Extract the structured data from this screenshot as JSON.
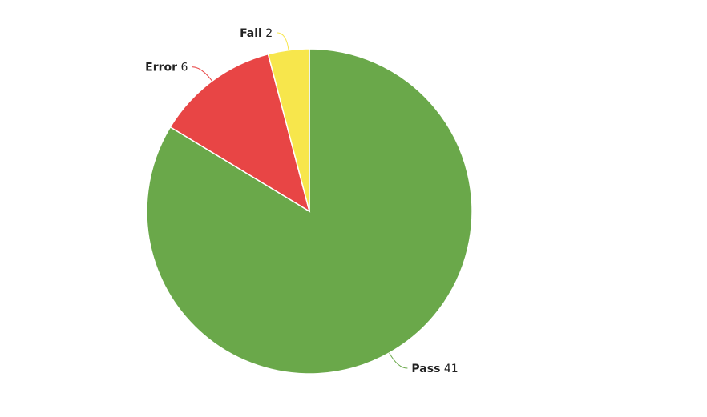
{
  "chart_data": {
    "type": "pie",
    "categories": [
      "Pass",
      "Error",
      "Fail"
    ],
    "values": [
      41,
      6,
      2
    ],
    "colors": [
      "#6aa84a",
      "#e84545",
      "#f7e64c"
    ],
    "start_angle_deg": 0,
    "direction": "clockwise",
    "slice_border_color": "#ffffff",
    "legend": "none"
  }
}
